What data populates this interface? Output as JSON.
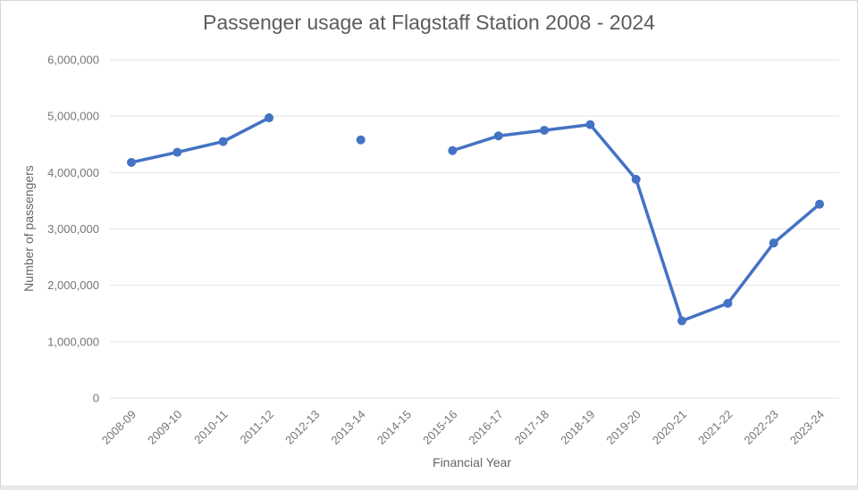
{
  "chart_data": {
    "type": "line",
    "title": "Passenger usage at Flagstaff Station 2008 - 2024",
    "xlabel": "Financial Year",
    "ylabel": "Number of passengers",
    "categories": [
      "2008-09",
      "2009-10",
      "2010-11",
      "2011-12",
      "2012-13",
      "2013-14",
      "2014-15",
      "2015-16",
      "2016-17",
      "2017-18",
      "2018-19",
      "2019-20",
      "2020-21",
      "2021-22",
      "2022-23",
      "2023-24"
    ],
    "values": [
      4180000,
      4360000,
      4550000,
      4970000,
      null,
      4580000,
      null,
      4390000,
      4650000,
      4750000,
      4850000,
      3880000,
      1370000,
      1680000,
      2750000,
      3440000
    ],
    "ylim": [
      0,
      6000000
    ],
    "yticks": [
      {
        "value": 0,
        "label": "0"
      },
      {
        "value": 1000000,
        "label": "1,000,000"
      },
      {
        "value": 2000000,
        "label": "2,000,000"
      },
      {
        "value": 3000000,
        "label": "3,000,000"
      },
      {
        "value": 4000000,
        "label": "4,000,000"
      },
      {
        "value": 5000000,
        "label": "5,000,000"
      },
      {
        "value": 6000000,
        "label": "6,000,000"
      }
    ],
    "grid": true,
    "legend": "none",
    "notes": "no data markers for 2012-13 and 2014-15; line is broken at those years",
    "colors": {
      "line": "#4472C4",
      "grid": "#e2e2e2"
    }
  }
}
